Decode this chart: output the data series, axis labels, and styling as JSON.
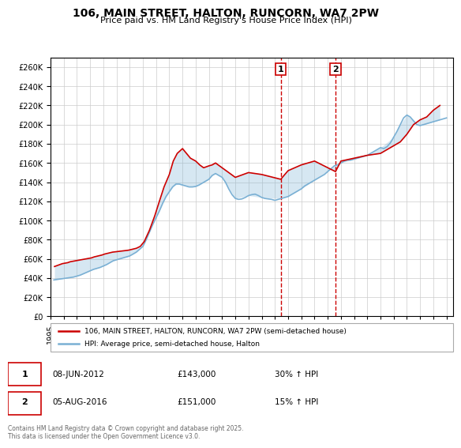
{
  "title": "106, MAIN STREET, HALTON, RUNCORN, WA7 2PW",
  "subtitle": "Price paid vs. HM Land Registry's House Price Index (HPI)",
  "ylim": [
    0,
    270000
  ],
  "yticks": [
    0,
    20000,
    40000,
    60000,
    80000,
    100000,
    120000,
    140000,
    160000,
    180000,
    200000,
    220000,
    240000,
    260000
  ],
  "xlim_start": 1995.0,
  "xlim_end": 2025.5,
  "color_red": "#cc0000",
  "color_blue": "#7ab0d4",
  "color_dashed": "#cc0000",
  "bg_color": "#ffffff",
  "grid_color": "#cccccc",
  "transaction1_date": "08-JUN-2012",
  "transaction1_price": 143000,
  "transaction1_hpi": "30% ↑ HPI",
  "transaction1_x": 2012.44,
  "transaction2_date": "05-AUG-2016",
  "transaction2_price": 151000,
  "transaction2_hpi": "15% ↑ HPI",
  "transaction2_x": 2016.59,
  "legend_label1": "106, MAIN STREET, HALTON, RUNCORN, WA7 2PW (semi-detached house)",
  "legend_label2": "HPI: Average price, semi-detached house, Halton",
  "footer": "Contains HM Land Registry data © Crown copyright and database right 2025.\nThis data is licensed under the Open Government Licence v3.0.",
  "hpi_data": {
    "years": [
      1995.25,
      1995.5,
      1995.75,
      1996.0,
      1996.25,
      1996.5,
      1996.75,
      1997.0,
      1997.25,
      1997.5,
      1997.75,
      1998.0,
      1998.25,
      1998.5,
      1998.75,
      1999.0,
      1999.25,
      1999.5,
      1999.75,
      2000.0,
      2000.25,
      2000.5,
      2000.75,
      2001.0,
      2001.25,
      2001.5,
      2001.75,
      2002.0,
      2002.25,
      2002.5,
      2002.75,
      2003.0,
      2003.25,
      2003.5,
      2003.75,
      2004.0,
      2004.25,
      2004.5,
      2004.75,
      2005.0,
      2005.25,
      2005.5,
      2005.75,
      2006.0,
      2006.25,
      2006.5,
      2006.75,
      2007.0,
      2007.25,
      2007.5,
      2007.75,
      2008.0,
      2008.25,
      2008.5,
      2008.75,
      2009.0,
      2009.25,
      2009.5,
      2009.75,
      2010.0,
      2010.25,
      2010.5,
      2010.75,
      2011.0,
      2011.25,
      2011.5,
      2011.75,
      2012.0,
      2012.25,
      2012.5,
      2012.75,
      2013.0,
      2013.25,
      2013.5,
      2013.75,
      2014.0,
      2014.25,
      2014.5,
      2014.75,
      2015.0,
      2015.25,
      2015.5,
      2015.75,
      2016.0,
      2016.25,
      2016.5,
      2016.75,
      2017.0,
      2017.25,
      2017.5,
      2017.75,
      2018.0,
      2018.25,
      2018.5,
      2018.75,
      2019.0,
      2019.25,
      2019.5,
      2019.75,
      2020.0,
      2020.25,
      2020.5,
      2020.75,
      2021.0,
      2021.25,
      2021.5,
      2021.75,
      2022.0,
      2022.25,
      2022.5,
      2022.75,
      2023.0,
      2023.25,
      2023.5,
      2023.75,
      2024.0,
      2024.25,
      2024.5,
      2024.75,
      2025.0
    ],
    "values": [
      38000,
      38500,
      39000,
      39500,
      40000,
      40500,
      41000,
      42000,
      43000,
      44500,
      46000,
      47500,
      49000,
      50000,
      51000,
      52500,
      54000,
      56000,
      58000,
      59000,
      60000,
      61000,
      62000,
      63000,
      65000,
      67000,
      70000,
      73000,
      80000,
      88000,
      96000,
      103000,
      110000,
      118000,
      125000,
      130000,
      135000,
      138000,
      138000,
      137000,
      136000,
      135000,
      135000,
      135500,
      137000,
      139000,
      141000,
      143000,
      147000,
      149000,
      147000,
      145000,
      140000,
      133000,
      127000,
      123000,
      122000,
      122500,
      124000,
      126000,
      127000,
      127500,
      126000,
      124000,
      123000,
      122500,
      122000,
      121000,
      122000,
      123000,
      124000,
      125000,
      127000,
      129000,
      131000,
      133000,
      136000,
      138000,
      140000,
      142000,
      144000,
      146000,
      148000,
      151000,
      154000,
      157000,
      158000,
      160000,
      162000,
      163000,
      163000,
      164000,
      165000,
      166000,
      167000,
      168000,
      170000,
      172000,
      174000,
      176000,
      175000,
      177000,
      181000,
      187000,
      193000,
      200000,
      207000,
      210000,
      208000,
      204000,
      200000,
      199000,
      200000,
      201000,
      202000,
      203000,
      204000,
      205000,
      206000,
      207000
    ]
  },
  "price_data": {
    "years": [
      1995.3,
      1995.5,
      1995.7,
      1995.9,
      1996.1,
      1996.3,
      1996.5,
      1996.7,
      1996.9,
      1997.1,
      1997.3,
      1997.5,
      1997.7,
      1997.9,
      1998.1,
      1998.3,
      1998.6,
      1998.9,
      1999.1,
      1999.4,
      1999.7,
      2000.0,
      2000.3,
      2000.6,
      2000.9,
      2001.2,
      2001.5,
      2001.8,
      2002.1,
      2002.5,
      2002.9,
      2003.2,
      2003.6,
      2004.0,
      2004.3,
      2004.6,
      2005.0,
      2005.3,
      2005.6,
      2006.0,
      2006.3,
      2006.6,
      2007.0,
      2007.25,
      2007.5,
      2008.0,
      2009.0,
      2010.0,
      2011.0,
      2012.44,
      2013.0,
      2014.0,
      2015.0,
      2016.59,
      2017.0,
      2018.0,
      2019.0,
      2020.0,
      2021.0,
      2021.5,
      2022.0,
      2022.5,
      2023.0,
      2023.5,
      2024.0,
      2024.5
    ],
    "values": [
      52000,
      53000,
      54000,
      55000,
      55500,
      56000,
      57000,
      57500,
      58000,
      58500,
      59000,
      59500,
      60000,
      60500,
      61000,
      62000,
      63000,
      64000,
      65000,
      66000,
      67000,
      67500,
      68000,
      68500,
      69000,
      70000,
      71000,
      73000,
      78000,
      90000,
      105000,
      118000,
      135000,
      148000,
      162000,
      170000,
      175000,
      170000,
      165000,
      162000,
      158000,
      155000,
      157000,
      158000,
      160000,
      155000,
      145000,
      150000,
      148000,
      143000,
      152000,
      158000,
      162000,
      151000,
      162000,
      165000,
      168000,
      170000,
      178000,
      182000,
      190000,
      200000,
      205000,
      208000,
      215000,
      220000
    ]
  }
}
